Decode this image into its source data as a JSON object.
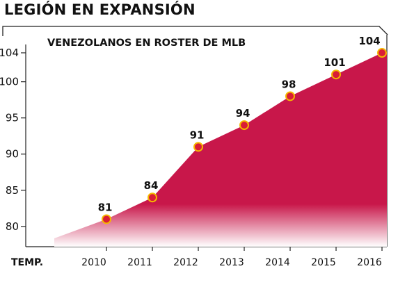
{
  "title": "LEGIÓN EN EXPANSIÓN",
  "chart_data": {
    "type": "area",
    "title": "VENEZOLANOS EN ROSTER DE MLB",
    "xlabel": "TEMP.",
    "ylabel": "",
    "x": [
      "2010",
      "2011",
      "2012",
      "2013",
      "2014",
      "2015",
      "2016"
    ],
    "values": [
      81,
      84,
      91,
      94,
      98,
      101,
      104
    ],
    "y_ticks": [
      80,
      85,
      90,
      95,
      100,
      104
    ],
    "ylim": [
      77.2,
      104
    ],
    "grid": false,
    "colors": {
      "area": "#c8174a",
      "area_fade": "#ffffff",
      "marker_fill": "#d91e36",
      "marker_stroke": "#f5b800",
      "frame": "#222222"
    }
  }
}
